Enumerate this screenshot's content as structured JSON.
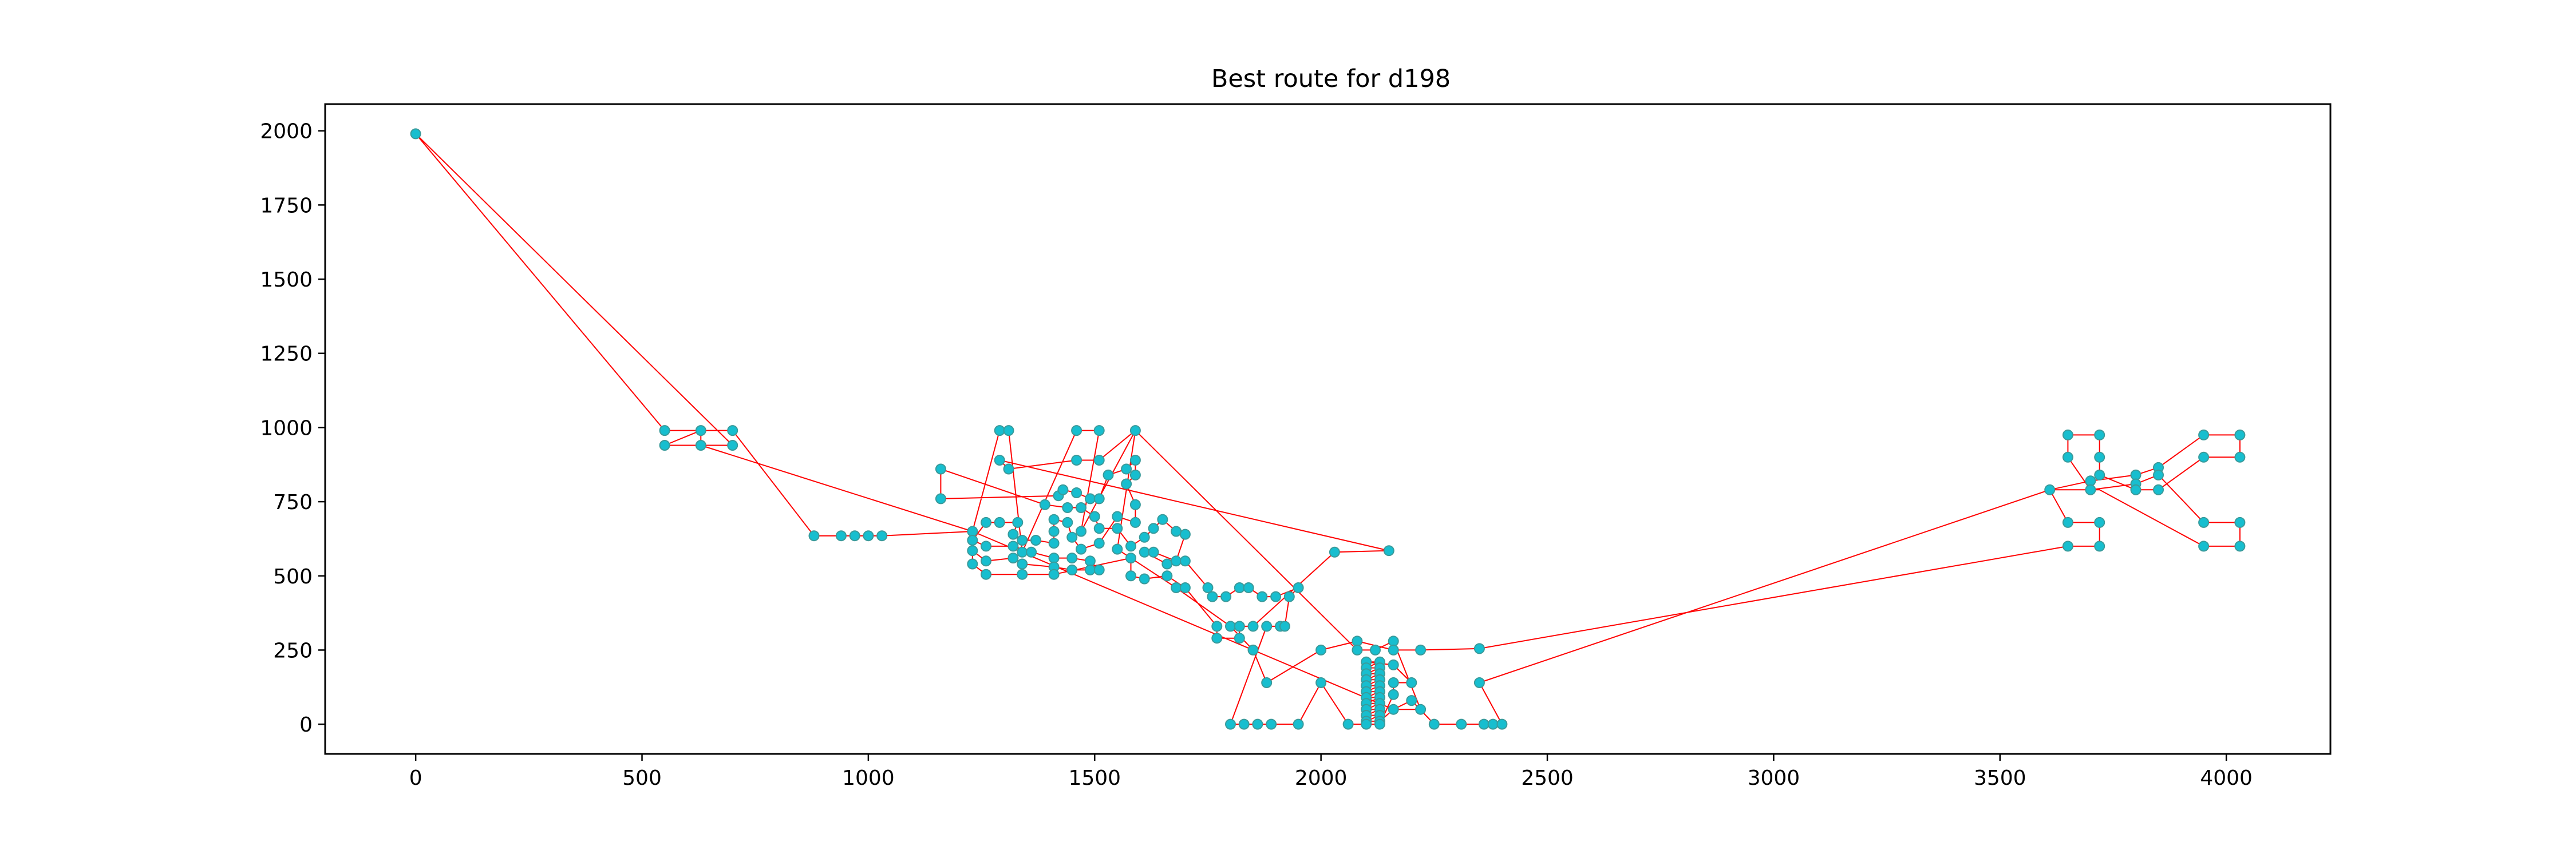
{
  "chart_data": {
    "type": "scatter",
    "title": "Best route for d198",
    "xlabel": "",
    "ylabel": "",
    "xlim": [
      -200,
      4230
    ],
    "ylim": [
      -100,
      2090
    ],
    "grid": false,
    "x_ticks": [
      0,
      500,
      1000,
      1500,
      2000,
      2500,
      3000,
      3500,
      4000
    ],
    "y_ticks": [
      0,
      250,
      500,
      750,
      1000,
      1250,
      1500,
      1750,
      2000
    ],
    "colors": {
      "points": "#17becf",
      "points_edge": "#3a9a9a",
      "route": "#ff0000"
    },
    "points": [
      [
        0,
        1990
      ],
      [
        550,
        990
      ],
      [
        550,
        940
      ],
      [
        630,
        990
      ],
      [
        630,
        940
      ],
      [
        700,
        990
      ],
      [
        700,
        940
      ],
      [
        880,
        635
      ],
      [
        940,
        635
      ],
      [
        970,
        635
      ],
      [
        1000,
        635
      ],
      [
        1030,
        635
      ],
      [
        1160,
        860
      ],
      [
        1160,
        760
      ],
      [
        1230,
        650
      ],
      [
        1230,
        620
      ],
      [
        1230,
        585
      ],
      [
        1230,
        540
      ],
      [
        1260,
        680
      ],
      [
        1260,
        600
      ],
      [
        1260,
        550
      ],
      [
        1260,
        505
      ],
      [
        1290,
        990
      ],
      [
        1310,
        990
      ],
      [
        1290,
        890
      ],
      [
        1310,
        860
      ],
      [
        1290,
        680
      ],
      [
        1320,
        640
      ],
      [
        1320,
        600
      ],
      [
        1320,
        560
      ],
      [
        1330,
        680
      ],
      [
        1340,
        620
      ],
      [
        1340,
        580
      ],
      [
        1340,
        540
      ],
      [
        1340,
        505
      ],
      [
        1360,
        580
      ],
      [
        1370,
        620
      ],
      [
        1390,
        740
      ],
      [
        1410,
        690
      ],
      [
        1410,
        650
      ],
      [
        1410,
        610
      ],
      [
        1410,
        560
      ],
      [
        1410,
        530
      ],
      [
        1410,
        505
      ],
      [
        1420,
        770
      ],
      [
        1430,
        790
      ],
      [
        1440,
        730
      ],
      [
        1440,
        680
      ],
      [
        1450,
        630
      ],
      [
        1450,
        560
      ],
      [
        1450,
        520
      ],
      [
        1460,
        990
      ],
      [
        1460,
        890
      ],
      [
        1460,
        780
      ],
      [
        1470,
        730
      ],
      [
        1470,
        650
      ],
      [
        1470,
        590
      ],
      [
        1490,
        550
      ],
      [
        1490,
        520
      ],
      [
        1490,
        760
      ],
      [
        1500,
        700
      ],
      [
        1510,
        990
      ],
      [
        1510,
        890
      ],
      [
        1510,
        760
      ],
      [
        1510,
        660
      ],
      [
        1510,
        610
      ],
      [
        1510,
        520
      ],
      [
        1530,
        840
      ],
      [
        1550,
        700
      ],
      [
        1550,
        660
      ],
      [
        1550,
        590
      ],
      [
        1570,
        860
      ],
      [
        1570,
        810
      ],
      [
        1580,
        600
      ],
      [
        1580,
        560
      ],
      [
        1580,
        500
      ],
      [
        1590,
        990
      ],
      [
        1590,
        890
      ],
      [
        1590,
        840
      ],
      [
        1590,
        740
      ],
      [
        1590,
        680
      ],
      [
        1610,
        630
      ],
      [
        1610,
        580
      ],
      [
        1610,
        490
      ],
      [
        1630,
        660
      ],
      [
        1630,
        580
      ],
      [
        1650,
        690
      ],
      [
        1660,
        540
      ],
      [
        1660,
        500
      ],
      [
        1680,
        650
      ],
      [
        1680,
        550
      ],
      [
        1680,
        460
      ],
      [
        1700,
        640
      ],
      [
        1700,
        550
      ],
      [
        1700,
        460
      ],
      [
        1750,
        460
      ],
      [
        1760,
        430
      ],
      [
        1770,
        330
      ],
      [
        1770,
        290
      ],
      [
        1790,
        430
      ],
      [
        1800,
        330
      ],
      [
        1820,
        460
      ],
      [
        1820,
        330
      ],
      [
        1820,
        290
      ],
      [
        1840,
        460
      ],
      [
        1850,
        330
      ],
      [
        1850,
        250
      ],
      [
        1870,
        430
      ],
      [
        1880,
        330
      ],
      [
        1880,
        140
      ],
      [
        1900,
        430
      ],
      [
        1910,
        330
      ],
      [
        1920,
        330
      ],
      [
        1930,
        430
      ],
      [
        1950,
        460
      ],
      [
        2000,
        250
      ],
      [
        2000,
        140
      ],
      [
        2030,
        580
      ],
      [
        2080,
        280
      ],
      [
        2080,
        250
      ],
      [
        2100,
        210
      ],
      [
        2100,
        190
      ],
      [
        2100,
        170
      ],
      [
        2100,
        150
      ],
      [
        2100,
        130
      ],
      [
        2100,
        110
      ],
      [
        2100,
        90
      ],
      [
        2100,
        70
      ],
      [
        2100,
        50
      ],
      [
        2100,
        30
      ],
      [
        2100,
        10
      ],
      [
        2120,
        250
      ],
      [
        2130,
        210
      ],
      [
        2130,
        190
      ],
      [
        2130,
        170
      ],
      [
        2130,
        150
      ],
      [
        2130,
        130
      ],
      [
        2130,
        110
      ],
      [
        2130,
        90
      ],
      [
        2130,
        70
      ],
      [
        2130,
        50
      ],
      [
        2130,
        30
      ],
      [
        2130,
        10
      ],
      [
        2150,
        585
      ],
      [
        2160,
        280
      ],
      [
        2160,
        250
      ],
      [
        2160,
        200
      ],
      [
        2160,
        140
      ],
      [
        2160,
        100
      ],
      [
        2160,
        50
      ],
      [
        2200,
        140
      ],
      [
        2200,
        80
      ],
      [
        2220,
        50
      ],
      [
        2220,
        250
      ],
      [
        1800,
        0
      ],
      [
        1830,
        0
      ],
      [
        1860,
        0
      ],
      [
        1890,
        0
      ],
      [
        1950,
        0
      ],
      [
        2060,
        0
      ],
      [
        2100,
        0
      ],
      [
        2130,
        0
      ],
      [
        2250,
        0
      ],
      [
        2310,
        0
      ],
      [
        2360,
        0
      ],
      [
        2380,
        0
      ],
      [
        2400,
        0
      ],
      [
        2350,
        255
      ],
      [
        2350,
        140
      ],
      [
        3610,
        790
      ],
      [
        3650,
        975
      ],
      [
        3650,
        900
      ],
      [
        3650,
        680
      ],
      [
        3650,
        600
      ],
      [
        3700,
        820
      ],
      [
        3700,
        790
      ],
      [
        3720,
        975
      ],
      [
        3720,
        900
      ],
      [
        3720,
        840
      ],
      [
        3720,
        680
      ],
      [
        3720,
        600
      ],
      [
        3800,
        840
      ],
      [
        3800,
        810
      ],
      [
        3800,
        790
      ],
      [
        3850,
        865
      ],
      [
        3850,
        840
      ],
      [
        3850,
        790
      ],
      [
        3950,
        975
      ],
      [
        3950,
        900
      ],
      [
        3950,
        680
      ],
      [
        3950,
        600
      ],
      [
        4030,
        975
      ],
      [
        4030,
        900
      ],
      [
        4030,
        680
      ],
      [
        4030,
        600
      ]
    ],
    "route": [
      [
        0,
        1990
      ],
      [
        550,
        990
      ],
      [
        700,
        990
      ],
      [
        880,
        635
      ],
      [
        940,
        635
      ],
      [
        970,
        635
      ],
      [
        1000,
        635
      ],
      [
        1030,
        635
      ],
      [
        1230,
        650
      ],
      [
        1290,
        990
      ],
      [
        1310,
        990
      ],
      [
        1340,
        580
      ],
      [
        1460,
        990
      ],
      [
        1510,
        990
      ],
      [
        1470,
        650
      ],
      [
        1590,
        990
      ],
      [
        1550,
        590
      ],
      [
        1680,
        460
      ],
      [
        1800,
        330
      ],
      [
        1850,
        250
      ],
      [
        1880,
        140
      ],
      [
        2000,
        250
      ],
      [
        2080,
        280
      ],
      [
        2160,
        250
      ],
      [
        2220,
        250
      ],
      [
        2350,
        255
      ],
      [
        3650,
        600
      ],
      [
        3720,
        600
      ],
      [
        3720,
        680
      ],
      [
        3650,
        680
      ],
      [
        3610,
        790
      ],
      [
        3700,
        820
      ],
      [
        3800,
        840
      ],
      [
        3850,
        865
      ],
      [
        3950,
        975
      ],
      [
        4030,
        975
      ],
      [
        4030,
        900
      ],
      [
        3950,
        900
      ],
      [
        3850,
        790
      ],
      [
        3800,
        790
      ],
      [
        3720,
        840
      ],
      [
        3720,
        900
      ],
      [
        3720,
        975
      ],
      [
        3650,
        975
      ],
      [
        3650,
        900
      ],
      [
        3700,
        790
      ],
      [
        3800,
        810
      ],
      [
        3850,
        840
      ],
      [
        3950,
        680
      ],
      [
        4030,
        680
      ],
      [
        4030,
        600
      ],
      [
        3950,
        600
      ],
      [
        3720,
        790
      ],
      [
        3610,
        790
      ],
      [
        2350,
        140
      ],
      [
        2400,
        0
      ],
      [
        2380,
        0
      ],
      [
        2360,
        0
      ],
      [
        2310,
        0
      ],
      [
        2250,
        0
      ],
      [
        2200,
        80
      ],
      [
        2160,
        50
      ],
      [
        2130,
        10
      ],
      [
        2100,
        10
      ],
      [
        2130,
        30
      ],
      [
        2100,
        30
      ],
      [
        2130,
        50
      ],
      [
        2100,
        50
      ],
      [
        2130,
        70
      ],
      [
        2100,
        70
      ],
      [
        2130,
        90
      ],
      [
        2100,
        90
      ],
      [
        2130,
        110
      ],
      [
        2100,
        110
      ],
      [
        2130,
        130
      ],
      [
        2100,
        130
      ],
      [
        2130,
        150
      ],
      [
        2100,
        150
      ],
      [
        2130,
        170
      ],
      [
        2100,
        170
      ],
      [
        2130,
        190
      ],
      [
        2100,
        190
      ],
      [
        2130,
        210
      ],
      [
        2100,
        210
      ],
      [
        2160,
        200
      ],
      [
        2200,
        140
      ],
      [
        2160,
        140
      ],
      [
        2160,
        100
      ],
      [
        2130,
        0
      ],
      [
        2100,
        0
      ],
      [
        2060,
        0
      ],
      [
        2000,
        140
      ],
      [
        1950,
        0
      ],
      [
        1890,
        0
      ],
      [
        1860,
        0
      ],
      [
        1830,
        0
      ],
      [
        1800,
        0
      ],
      [
        1880,
        330
      ],
      [
        1910,
        330
      ],
      [
        1920,
        330
      ],
      [
        1930,
        430
      ],
      [
        1950,
        460
      ],
      [
        1900,
        430
      ],
      [
        1870,
        430
      ],
      [
        1840,
        460
      ],
      [
        1820,
        460
      ],
      [
        1790,
        430
      ],
      [
        1760,
        430
      ],
      [
        1750,
        460
      ],
      [
        1700,
        550
      ],
      [
        1660,
        540
      ],
      [
        1610,
        580
      ],
      [
        1630,
        580
      ],
      [
        1680,
        550
      ],
      [
        1700,
        640
      ],
      [
        1680,
        650
      ],
      [
        1650,
        690
      ],
      [
        1630,
        660
      ],
      [
        1610,
        630
      ],
      [
        1580,
        600
      ],
      [
        1550,
        660
      ],
      [
        1510,
        660
      ],
      [
        1500,
        700
      ],
      [
        1470,
        730
      ],
      [
        1440,
        730
      ],
      [
        1390,
        740
      ],
      [
        1160,
        860
      ],
      [
        1160,
        760
      ],
      [
        1420,
        770
      ],
      [
        1430,
        790
      ],
      [
        1460,
        780
      ],
      [
        1490,
        760
      ],
      [
        1510,
        760
      ],
      [
        1530,
        840
      ],
      [
        1570,
        860
      ],
      [
        1590,
        890
      ],
      [
        1590,
        840
      ],
      [
        1570,
        810
      ],
      [
        1590,
        740
      ],
      [
        1590,
        680
      ],
      [
        1550,
        700
      ],
      [
        1510,
        610
      ],
      [
        1470,
        590
      ],
      [
        1450,
        630
      ],
      [
        1440,
        680
      ],
      [
        1410,
        690
      ],
      [
        1410,
        650
      ],
      [
        1410,
        610
      ],
      [
        1370,
        620
      ],
      [
        1340,
        620
      ],
      [
        1320,
        640
      ],
      [
        1330,
        680
      ],
      [
        1290,
        680
      ],
      [
        1260,
        680
      ],
      [
        1230,
        620
      ],
      [
        1260,
        600
      ],
      [
        1320,
        600
      ],
      [
        1360,
        580
      ],
      [
        1410,
        560
      ],
      [
        1450,
        560
      ],
      [
        1490,
        550
      ],
      [
        1510,
        520
      ],
      [
        1490,
        520
      ],
      [
        1450,
        520
      ],
      [
        1410,
        530
      ],
      [
        1340,
        540
      ],
      [
        1320,
        560
      ],
      [
        1260,
        550
      ],
      [
        1230,
        585
      ],
      [
        1230,
        540
      ],
      [
        1260,
        505
      ],
      [
        1340,
        505
      ],
      [
        1410,
        505
      ],
      [
        1580,
        560
      ],
      [
        1580,
        500
      ],
      [
        1610,
        490
      ],
      [
        1660,
        500
      ],
      [
        1700,
        460
      ],
      [
        1770,
        330
      ],
      [
        1770,
        290
      ],
      [
        1820,
        290
      ],
      [
        1820,
        330
      ],
      [
        1850,
        330
      ],
      [
        2030,
        580
      ],
      [
        2150,
        585
      ],
      [
        1290,
        890
      ],
      [
        1310,
        860
      ],
      [
        1460,
        890
      ],
      [
        1510,
        890
      ],
      [
        1590,
        990
      ],
      [
        2080,
        250
      ],
      [
        2120,
        250
      ],
      [
        2160,
        280
      ],
      [
        2220,
        50
      ],
      [
        2160,
        50
      ],
      [
        1230,
        650
      ],
      [
        630,
        940
      ],
      [
        630,
        990
      ],
      [
        550,
        940
      ],
      [
        700,
        940
      ],
      [
        0,
        1990
      ]
    ]
  }
}
